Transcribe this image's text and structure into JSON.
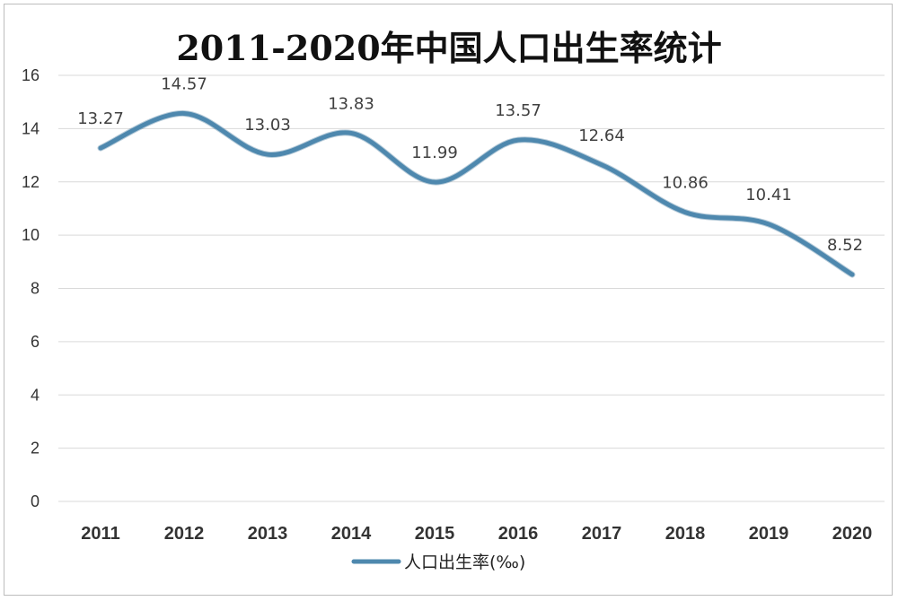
{
  "chart_data": {
    "type": "line",
    "title": "2011-2020年中国人口出生率统计",
    "categories": [
      "2011",
      "2012",
      "2013",
      "2014",
      "2015",
      "2016",
      "2017",
      "2018",
      "2019",
      "2020"
    ],
    "series": [
      {
        "name": "人口出生率(‰)",
        "values": [
          13.27,
          14.57,
          13.03,
          13.83,
          11.99,
          13.57,
          12.64,
          10.86,
          10.41,
          8.52
        ],
        "data_labels": [
          "13.27",
          "14.57",
          "13.03",
          "13.83",
          "11.99",
          "13.57",
          "12.64",
          "10.86",
          "10.41",
          "8.52"
        ],
        "color": "#4e88ae"
      }
    ],
    "ylim": [
      0,
      16
    ],
    "yticks": [
      "0",
      "2",
      "4",
      "6",
      "8",
      "10",
      "12",
      "14",
      "16"
    ],
    "xlabel": "",
    "ylabel": "",
    "grid": true,
    "smooth": true,
    "legend_position": "bottom-left"
  }
}
